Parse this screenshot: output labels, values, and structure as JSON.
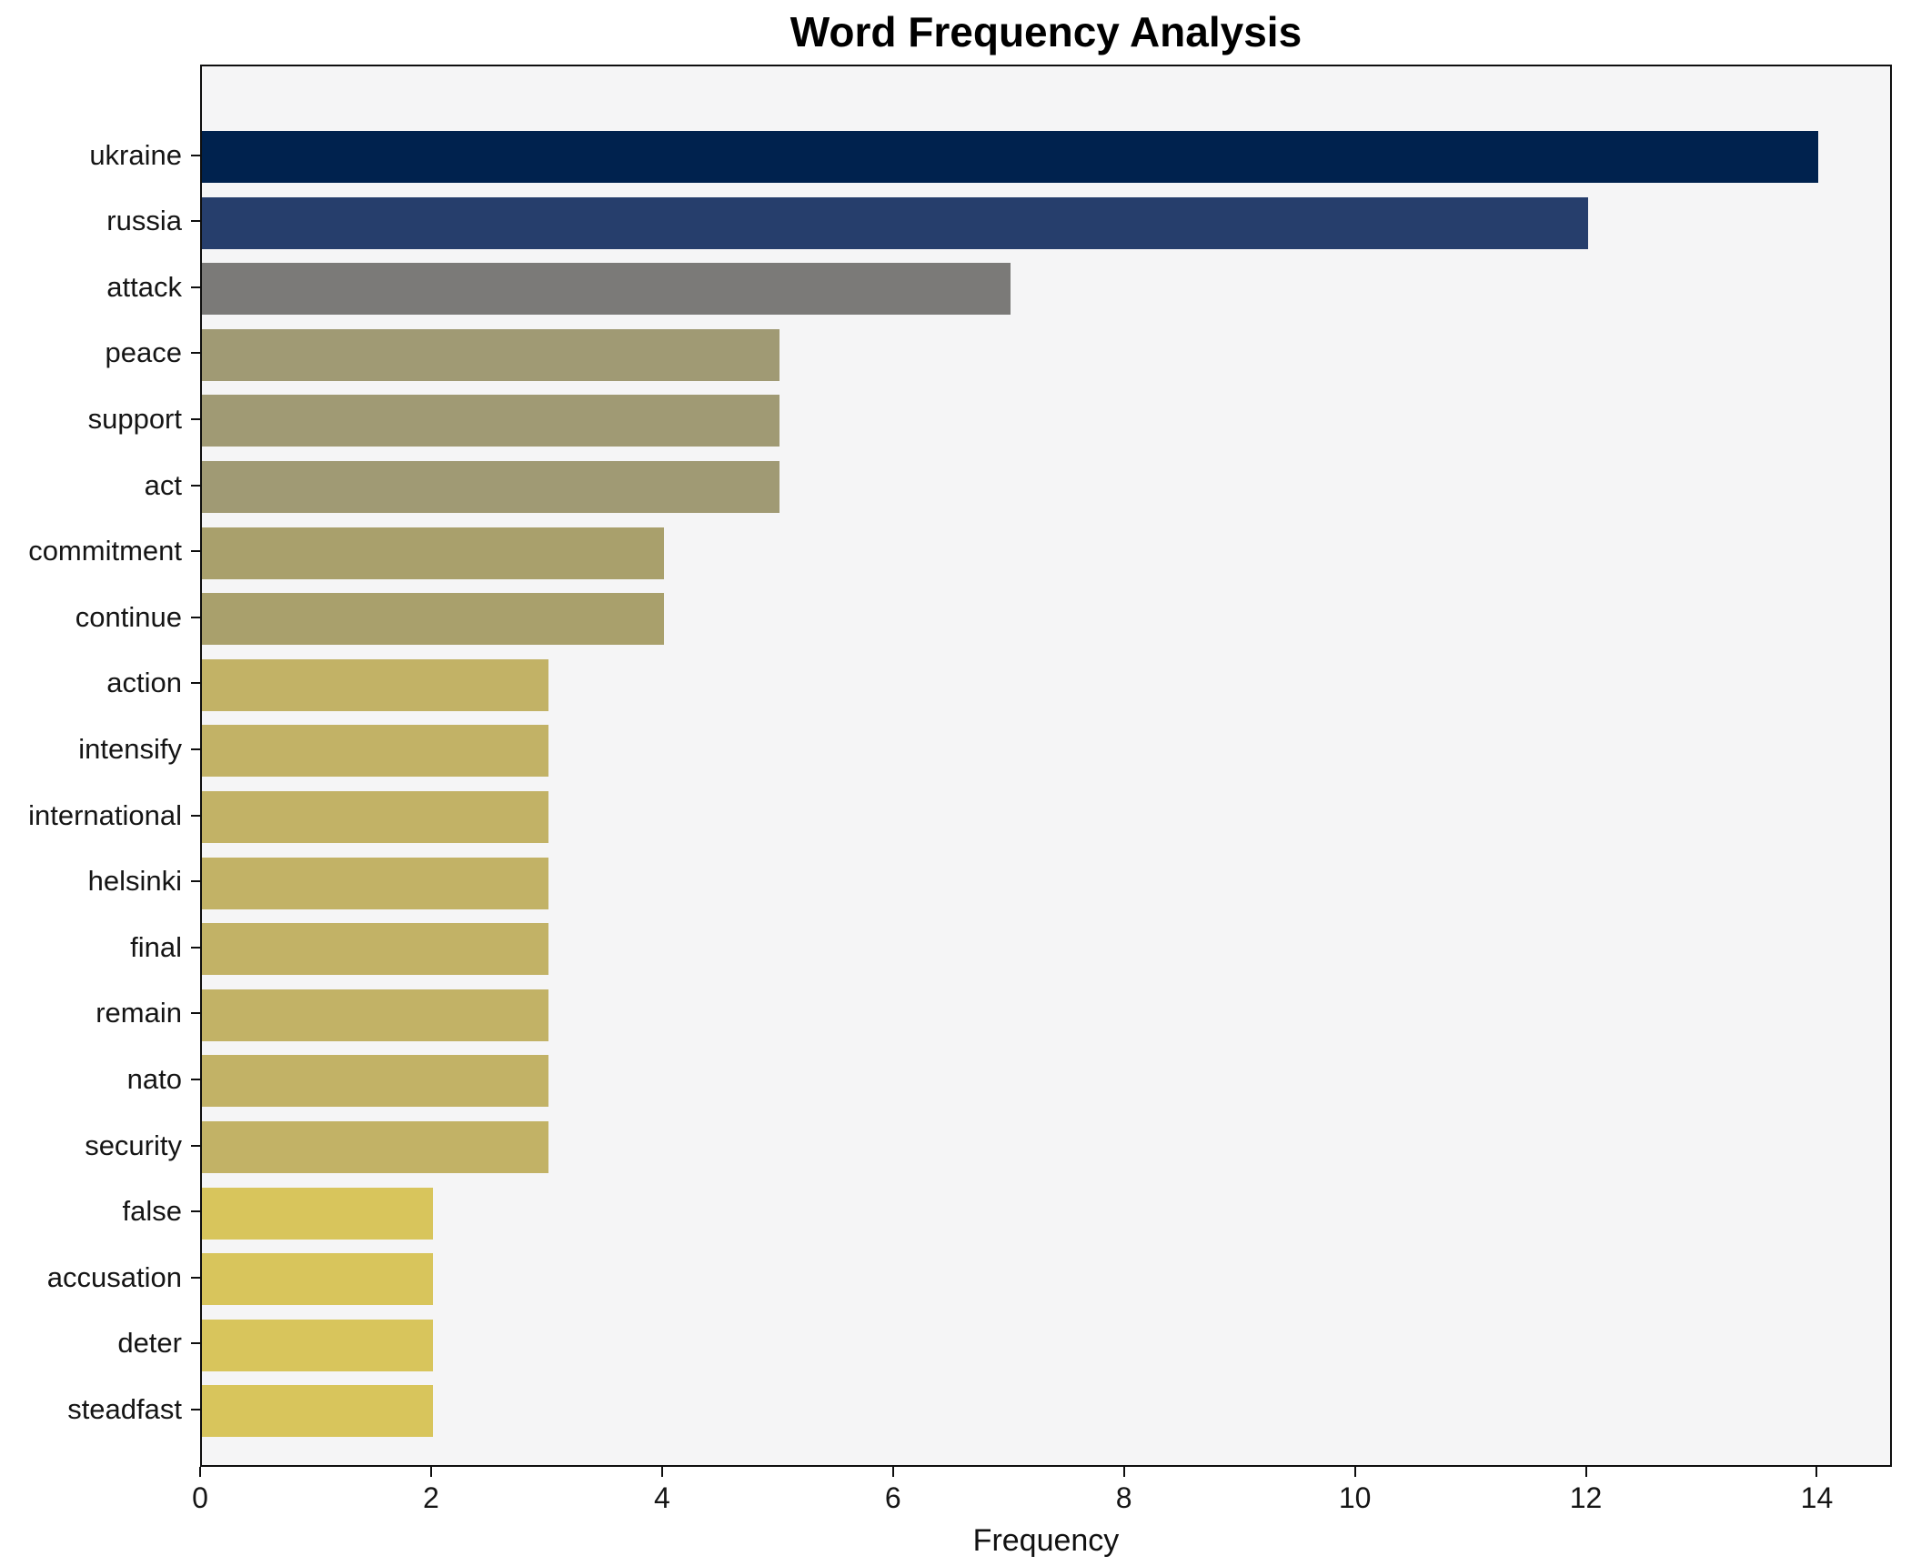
{
  "chart_data": {
    "type": "bar",
    "orientation": "horizontal",
    "title": "Word Frequency Analysis",
    "xlabel": "Frequency",
    "ylabel": "",
    "categories": [
      "ukraine",
      "russia",
      "attack",
      "peace",
      "support",
      "act",
      "commitment",
      "continue",
      "action",
      "intensify",
      "international",
      "helsinki",
      "final",
      "remain",
      "nato",
      "security",
      "false",
      "accusation",
      "deter",
      "steadfast"
    ],
    "values": [
      14,
      12,
      7,
      5,
      5,
      5,
      4,
      4,
      3,
      3,
      3,
      3,
      3,
      3,
      3,
      3,
      2,
      2,
      2,
      2
    ],
    "bar_colors": [
      "#00224e",
      "#263e6c",
      "#7b7a78",
      "#a09a74",
      "#a09a74",
      "#a09a74",
      "#a9a06c",
      "#a9a06c",
      "#c2b266",
      "#c2b266",
      "#c2b266",
      "#c2b266",
      "#c2b266",
      "#c2b266",
      "#c2b266",
      "#c2b266",
      "#d8c55c",
      "#d8c55c",
      "#d8c55c",
      "#d8c55c"
    ],
    "xlim": [
      0,
      14.65
    ],
    "xticks": [
      0,
      2,
      4,
      6,
      8,
      10,
      12,
      14
    ],
    "grid": false,
    "legend": null,
    "plot_background": "#f5f5f6",
    "frame_color": "#0e0e0e",
    "text_color": "#151515"
  }
}
